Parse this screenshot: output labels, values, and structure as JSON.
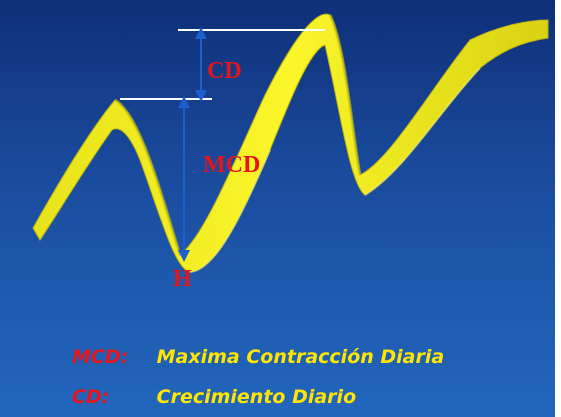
{
  "labels": {
    "cd": "CD",
    "mcd": "MCD",
    "h": "H"
  },
  "legend": [
    {
      "abbr": "MCD:",
      "text": "Maxima Contracción Diaria"
    },
    {
      "abbr": "CD:",
      "text": "Crecimiento Diario"
    }
  ],
  "colors": {
    "background": "#1a4a9c",
    "ribbon": "#f2ee1e",
    "ribbon_shadow": "#b9b313",
    "arrow": "#1e5fd0",
    "reference_line": "#ffffff",
    "label": "#e4151c",
    "legend_text": "#ffe600"
  }
}
